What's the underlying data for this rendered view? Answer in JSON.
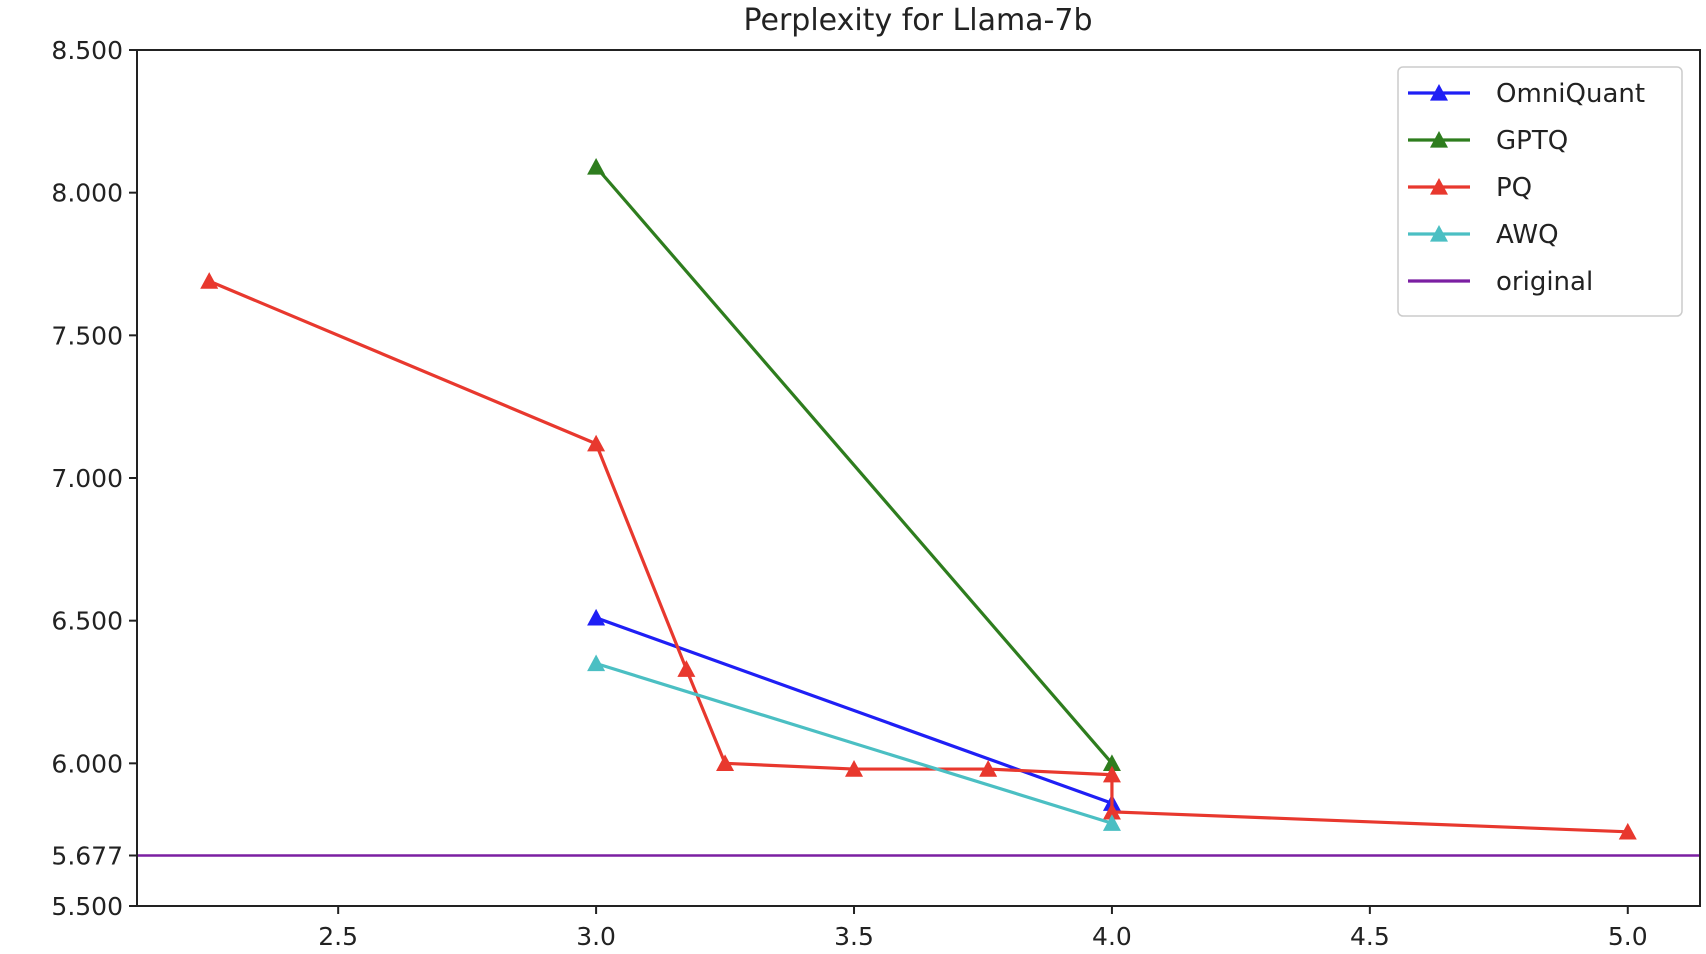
{
  "chart_data": {
    "type": "line",
    "title": "Perplexity for Llama-7b",
    "xlabel": "",
    "ylabel": "",
    "xlim": [
      2.11,
      5.14
    ],
    "ylim": [
      5.5,
      8.5
    ],
    "xticks": [
      2.5,
      3.0,
      3.5,
      4.0,
      4.5,
      5.0
    ],
    "xtick_labels": [
      "2.5",
      "3.0",
      "3.5",
      "4.0",
      "4.5",
      "5.0"
    ],
    "yticks": [
      5.5,
      5.677,
      6.0,
      6.5,
      7.0,
      7.5,
      8.0,
      8.5
    ],
    "ytick_labels": [
      "5.500",
      "5.677",
      "6.000",
      "6.500",
      "7.000",
      "7.500",
      "8.000",
      "8.500"
    ],
    "grid": false,
    "legend_position": "top-right",
    "series": [
      {
        "name": "OmniQuant",
        "color": "#1f1ff5",
        "marker": "triangle",
        "x": [
          3.0,
          4.0
        ],
        "y": [
          6.51,
          5.86
        ]
      },
      {
        "name": "GPTQ",
        "color": "#2e7d1e",
        "marker": "triangle",
        "x": [
          3.0,
          4.0
        ],
        "y": [
          8.09,
          6.0
        ]
      },
      {
        "name": "PQ",
        "color": "#e8382e",
        "marker": "triangle",
        "x": [
          2.25,
          3.0,
          3.175,
          3.25,
          3.5,
          3.76,
          4.0,
          4.0,
          5.0
        ],
        "y": [
          7.69,
          7.12,
          6.33,
          6.0,
          5.98,
          5.98,
          5.96,
          5.83,
          5.76
        ]
      },
      {
        "name": "AWQ",
        "color": "#4bbfc3",
        "marker": "triangle",
        "x": [
          3.0,
          4.0
        ],
        "y": [
          6.35,
          5.79
        ]
      },
      {
        "name": "original",
        "color": "#7b1fa2",
        "marker": "none",
        "hline": 5.677
      }
    ]
  }
}
